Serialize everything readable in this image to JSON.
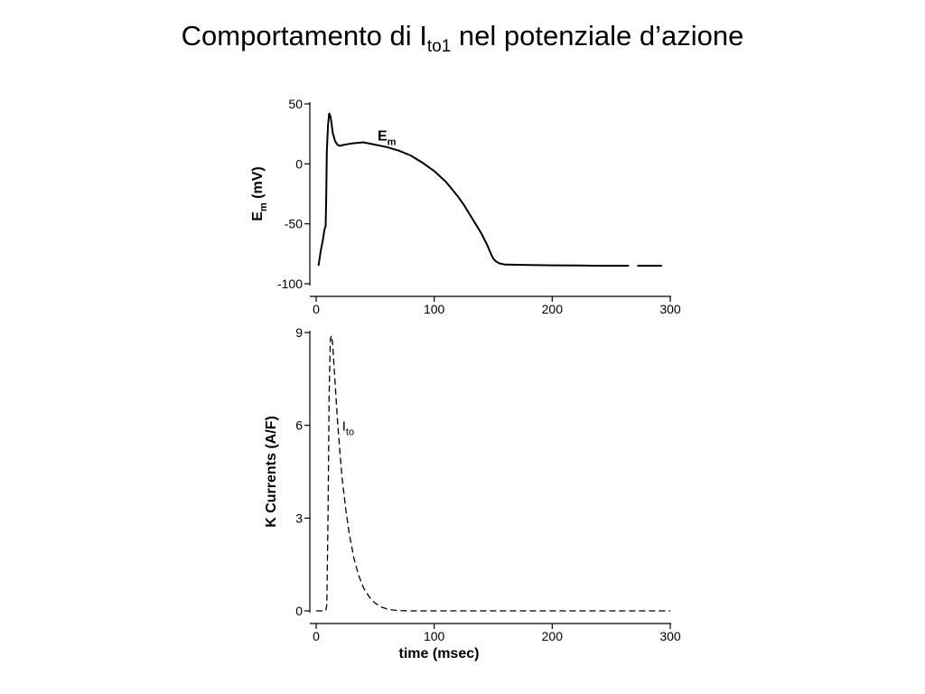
{
  "slide": {
    "title_main": "Comportamento di I",
    "title_sub": "to1",
    "title_rest": " nel potenziale d’azione"
  },
  "chart_data": [
    {
      "type": "line",
      "ylabel_main": "E",
      "ylabel_sub": "m",
      "ylabel_rest": " (mV)",
      "xlim": [
        0,
        300
      ],
      "ylim": [
        -100,
        50
      ],
      "x_ticks": [
        0,
        100,
        200,
        300
      ],
      "y_ticks": [
        50,
        0,
        -50,
        -100
      ],
      "grid": false,
      "annotation": {
        "main": "E",
        "sub": "m",
        "x": 52,
        "y": 24
      },
      "series": [
        {
          "style": "solid",
          "x": [
            2,
            4,
            6,
            7,
            8,
            8.5,
            9,
            10,
            11,
            12,
            13,
            14,
            16,
            18,
            20,
            24,
            30,
            40,
            50,
            60,
            70,
            80,
            90,
            100,
            110,
            120,
            125,
            130,
            135,
            140,
            145,
            148,
            150,
            152,
            155,
            160,
            170,
            180,
            200,
            220,
            240,
            265
          ],
          "y": [
            -85,
            -72,
            -62,
            -55,
            -52,
            -30,
            10,
            32,
            42,
            40,
            34,
            26,
            19,
            16,
            15,
            16,
            17,
            18,
            16,
            14,
            11,
            7,
            1,
            -6,
            -15,
            -27,
            -34,
            -42,
            -50,
            -58,
            -68,
            -75,
            -79,
            -81,
            -83,
            -84,
            -84.2,
            -84.4,
            -84.6,
            -84.8,
            -85,
            -85
          ]
        },
        {
          "style": "solid",
          "x": [
            272,
            293
          ],
          "y": [
            -85,
            -85
          ]
        }
      ]
    },
    {
      "type": "line",
      "xlabel": "time (msec)",
      "ylabel": "K Currents (A/F)",
      "xlim": [
        0,
        300
      ],
      "ylim": [
        0,
        9
      ],
      "x_ticks": [
        0,
        100,
        200,
        300
      ],
      "y_ticks": [
        9,
        6,
        3,
        0
      ],
      "grid": false,
      "annotation": {
        "main": "I",
        "sub": "to",
        "x": 22,
        "y": 6
      },
      "series": [
        {
          "style": "dashed",
          "x": [
            0,
            8,
            9,
            10,
            11,
            12,
            13,
            14,
            16,
            18,
            20,
            22,
            25,
            28,
            32,
            36,
            40,
            45,
            50,
            55,
            60,
            65,
            70,
            80,
            100,
            120,
            150,
            200,
            250,
            300
          ],
          "y": [
            0,
            0,
            0.2,
            3,
            7,
            8.8,
            8.9,
            8.6,
            7.4,
            6.2,
            5.2,
            4.3,
            3.3,
            2.5,
            1.7,
            1.15,
            0.75,
            0.45,
            0.25,
            0.13,
            0.06,
            0.03,
            0.01,
            0,
            0,
            0,
            0,
            0,
            0,
            0
          ]
        }
      ]
    }
  ]
}
